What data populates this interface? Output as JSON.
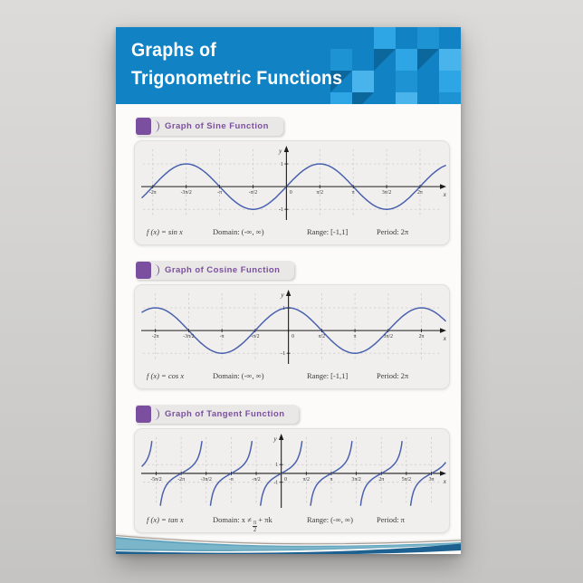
{
  "header": {
    "title_line1": "Graphs of",
    "title_line2": "Trigonometric Functions"
  },
  "colors": {
    "banner_blue": "#1182c4",
    "accent_purple": "#7a4fa0",
    "curve_blue": "#4a62ae",
    "card_gray": "#f1efee"
  },
  "sections": [
    {
      "title": "Graph of Sine Function",
      "formula": "f (x) = sin x",
      "domain_label": "Domain:",
      "domain_pre": "(-∞, ∞)",
      "domain_frac_num": "",
      "domain_frac_den": "",
      "domain_post": "",
      "range_label": "Range:",
      "range": "[-1,1]",
      "period_label": "Period:",
      "period": "2π"
    },
    {
      "title": "Graph of Cosine Function",
      "formula": "f (x) = cos x",
      "domain_label": "Domain:",
      "domain_pre": "(-∞, ∞)",
      "domain_frac_num": "",
      "domain_frac_den": "",
      "domain_post": "",
      "range_label": "Range:",
      "range": "[-1,1]",
      "period_label": "Period:",
      "period": "2π"
    },
    {
      "title": "Graph of Tangent Function",
      "formula": "f (x) = tan x",
      "domain_label": "Domain:",
      "domain_pre": "x ≠",
      "domain_frac_num": "π",
      "domain_frac_den": "2",
      "domain_post": "+ πk",
      "range_label": "Range:",
      "range": "(-∞, ∞)",
      "period_label": "Period:",
      "period": "π"
    }
  ],
  "chart_data": [
    {
      "type": "line",
      "title": "Graph of Sine Function",
      "function": "sin",
      "xlabel": "x",
      "ylabel": "y",
      "grid": "dashed",
      "xlim_pi": [
        -2.16,
        2.38
      ],
      "ylim": [
        -1.55,
        1.8
      ],
      "x_ticks": [
        {
          "pos": -2,
          "label": "-2π"
        },
        {
          "pos": -1.5,
          "label": "-3π/2"
        },
        {
          "pos": -1,
          "label": "-π"
        },
        {
          "pos": -0.5,
          "label": "-π/2"
        },
        {
          "pos": 0,
          "label": "0"
        },
        {
          "pos": 0.5,
          "label": "π/2"
        },
        {
          "pos": 1,
          "label": "π"
        },
        {
          "pos": 1.5,
          "label": "3π/2"
        },
        {
          "pos": 2,
          "label": "2π"
        }
      ],
      "y_ticks": [
        {
          "pos": 1,
          "label": "1"
        },
        {
          "pos": -1,
          "label": "-1"
        }
      ],
      "series": [
        {
          "name": "sin x",
          "color": "#4a62ae"
        }
      ]
    },
    {
      "type": "line",
      "title": "Graph of Cosine Function",
      "function": "cos",
      "xlabel": "x",
      "ylabel": "y",
      "grid": "dashed",
      "xlim_pi": [
        -2.2,
        2.36
      ],
      "ylim": [
        -1.55,
        1.8
      ],
      "x_ticks": [
        {
          "pos": -2,
          "label": "-2π"
        },
        {
          "pos": -1.5,
          "label": "-3π/2"
        },
        {
          "pos": -1,
          "label": "-π"
        },
        {
          "pos": -0.5,
          "label": "-π/2"
        },
        {
          "pos": 0,
          "label": "0"
        },
        {
          "pos": 0.5,
          "label": "π/2"
        },
        {
          "pos": 1,
          "label": "π"
        },
        {
          "pos": 1.5,
          "label": "3π/2"
        },
        {
          "pos": 2,
          "label": "2π"
        }
      ],
      "y_ticks": [
        {
          "pos": 1,
          "label": "1"
        },
        {
          "pos": -1,
          "label": "-1"
        }
      ],
      "series": [
        {
          "name": "cos x",
          "color": "#4a62ae"
        }
      ]
    },
    {
      "type": "line",
      "title": "Graph of Tangent Function",
      "function": "tan",
      "xlabel": "x",
      "ylabel": "y",
      "grid": "dashed",
      "xlim_pi": [
        -2.78,
        3.28
      ],
      "ylim": [
        -4.1,
        4.5
      ],
      "y_clip": 3.6,
      "x_ticks": [
        {
          "pos": -2.5,
          "label": "-5π/2"
        },
        {
          "pos": -2,
          "label": "-2π"
        },
        {
          "pos": -1.5,
          "label": "-3π/2"
        },
        {
          "pos": -1,
          "label": "-π"
        },
        {
          "pos": -0.5,
          "label": "-π/2"
        },
        {
          "pos": 0,
          "label": "0"
        },
        {
          "pos": 0.5,
          "label": "π/2"
        },
        {
          "pos": 1,
          "label": "π"
        },
        {
          "pos": 1.5,
          "label": "3π/2"
        },
        {
          "pos": 2,
          "label": "2π"
        },
        {
          "pos": 2.5,
          "label": "5π/2"
        },
        {
          "pos": 3,
          "label": "3π"
        }
      ],
      "y_ticks": [
        {
          "pos": 1,
          "label": "1"
        },
        {
          "pos": -1,
          "label": "-1"
        }
      ],
      "series": [
        {
          "name": "tan x",
          "color": "#4a62ae"
        }
      ]
    }
  ]
}
